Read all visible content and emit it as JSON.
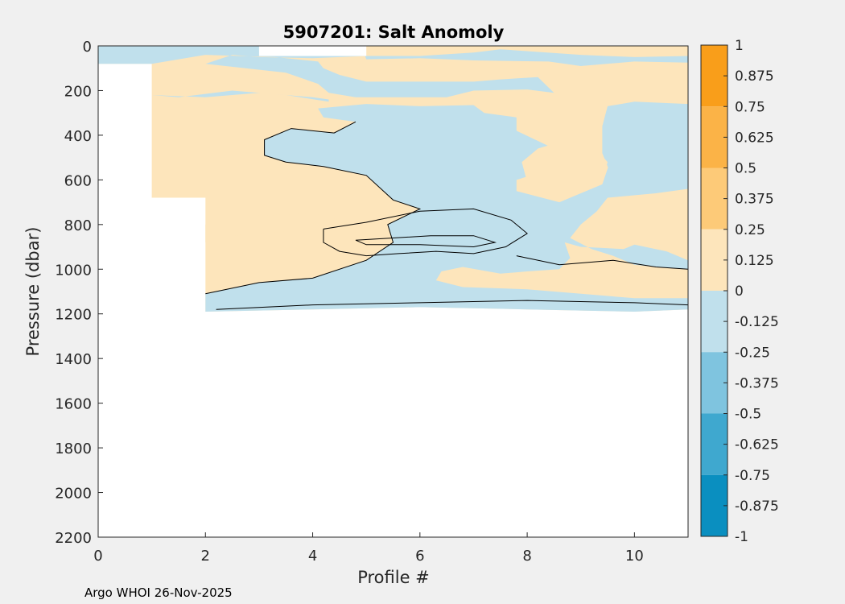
{
  "chart_data": {
    "type": "filled-contour",
    "title": "5907201: Salt Anomoly",
    "xlabel": "Profile #",
    "ylabel": "Pressure (dbar)",
    "xlim": [
      0,
      11
    ],
    "ylim": [
      0,
      2200
    ],
    "y_reversed": true,
    "x_ticks": [
      "0",
      "2",
      "4",
      "6",
      "8",
      "10"
    ],
    "y_ticks": [
      "0",
      "200",
      "400",
      "600",
      "800",
      "1000",
      "1200",
      "1400",
      "1600",
      "1800",
      "2000",
      "2200"
    ],
    "colorbar": {
      "range": [
        -1,
        1
      ],
      "tick_labels": [
        "1",
        "0.875",
        "0.75",
        "0.625",
        "0.5",
        "0.375",
        "0.25",
        "0.125",
        "0",
        "-0.125",
        "-0.25",
        "-0.375",
        "-0.5",
        "-0.625",
        "-0.75",
        "-0.875",
        "-1"
      ],
      "bands": [
        {
          "from": 0.75,
          "to": 1,
          "color": "#f99e1a"
        },
        {
          "from": 0.5,
          "to": 0.75,
          "color": "#fbb347"
        },
        {
          "from": 0.25,
          "to": 0.5,
          "color": "#fdca78"
        },
        {
          "from": 0,
          "to": 0.25,
          "color": "#fde5bb"
        },
        {
          "from": -0.25,
          "to": 0,
          "color": "#c0e0ec"
        },
        {
          "from": -0.5,
          "to": -0.25,
          "color": "#7fc4df"
        },
        {
          "from": -0.75,
          "to": -0.5,
          "color": "#3fa8cf"
        },
        {
          "from": -1,
          "to": -0.75,
          "color": "#0a8fc0"
        }
      ]
    },
    "regions": [
      {
        "name": "anomaly-0-to-0.25-region",
        "band": 3,
        "points": [
          [
            0,
            0
          ],
          [
            11,
            0
          ],
          [
            11,
            1180
          ],
          [
            10,
            1190
          ],
          [
            8,
            1180
          ],
          [
            6,
            1170
          ],
          [
            4,
            1180
          ],
          [
            2,
            1190
          ],
          [
            2,
            680
          ],
          [
            1,
            680
          ],
          [
            1,
            80
          ],
          [
            0,
            80
          ]
        ]
      },
      {
        "name": "anomaly-neg-upper-left-region",
        "band": 4,
        "points": [
          [
            0,
            0
          ],
          [
            4.9,
            0
          ],
          [
            5,
            60
          ],
          [
            6,
            55
          ],
          [
            7,
            65
          ],
          [
            8.4,
            70
          ],
          [
            9,
            90
          ],
          [
            10,
            70
          ],
          [
            11,
            75
          ],
          [
            11,
            45
          ],
          [
            10,
            50
          ],
          [
            9,
            40
          ],
          [
            7.5,
            15
          ],
          [
            7,
            30
          ],
          [
            6,
            45
          ],
          [
            5,
            45
          ],
          [
            4,
            55
          ],
          [
            3,
            50
          ],
          [
            2.5,
            40
          ],
          [
            2,
            80
          ],
          [
            3.5,
            120
          ],
          [
            4.1,
            170
          ],
          [
            4.3,
            210
          ],
          [
            4.8,
            230
          ],
          [
            6.5,
            230
          ],
          [
            7,
            200
          ],
          [
            8,
            195
          ],
          [
            8.5,
            210
          ],
          [
            8.2,
            140
          ],
          [
            7.5,
            150
          ],
          [
            7,
            160
          ],
          [
            5,
            160
          ],
          [
            4.5,
            130
          ],
          [
            4.2,
            100
          ],
          [
            4.1,
            70
          ],
          [
            3.3,
            50
          ],
          [
            2,
            40
          ],
          [
            1,
            80
          ],
          [
            1,
            220
          ],
          [
            2,
            230
          ],
          [
            3,
            210
          ],
          [
            4,
            230
          ],
          [
            4.3,
            240
          ],
          [
            4.3,
            250
          ],
          [
            3.5,
            220
          ],
          [
            2.5,
            200
          ],
          [
            1.5,
            230
          ],
          [
            1,
            220
          ],
          [
            1,
            80
          ],
          [
            0,
            80
          ]
        ]
      },
      {
        "name": "anomaly-neg-main-region",
        "band": 4,
        "points": [
          [
            2.2,
            1100
          ],
          [
            3,
            1060
          ],
          [
            4,
            1040
          ],
          [
            5,
            960
          ],
          [
            5.5,
            880
          ],
          [
            5.4,
            800
          ],
          [
            6,
            730
          ],
          [
            5.5,
            690
          ],
          [
            5,
            580
          ],
          [
            4.2,
            540
          ],
          [
            3.5,
            520
          ],
          [
            3.1,
            490
          ],
          [
            3.1,
            420
          ],
          [
            3.6,
            370
          ],
          [
            4.4,
            390
          ],
          [
            4.8,
            340
          ],
          [
            4.2,
            320
          ],
          [
            4.1,
            280
          ],
          [
            5,
            260
          ],
          [
            6,
            270
          ],
          [
            7,
            265
          ],
          [
            7.2,
            300
          ],
          [
            7.5,
            310
          ],
          [
            7.8,
            320
          ],
          [
            7.8,
            380
          ],
          [
            8.5,
            460
          ],
          [
            8.5,
            510
          ],
          [
            8.2,
            570
          ],
          [
            7.8,
            600
          ],
          [
            7.8,
            650
          ],
          [
            8.6,
            700
          ],
          [
            9,
            660
          ],
          [
            9.4,
            620
          ],
          [
            9.5,
            550
          ],
          [
            9.7,
            440
          ],
          [
            9.8,
            350
          ],
          [
            10.5,
            260
          ],
          [
            11,
            260
          ],
          [
            11,
            640
          ],
          [
            10.4,
            660
          ],
          [
            9.5,
            680
          ],
          [
            9.3,
            740
          ],
          [
            9,
            800
          ],
          [
            8.8,
            860
          ],
          [
            9.2,
            910
          ],
          [
            9.6,
            940
          ],
          [
            10,
            980
          ],
          [
            10.4,
            990
          ],
          [
            11,
            1000
          ],
          [
            11,
            960
          ],
          [
            10.6,
            920
          ],
          [
            10,
            890
          ],
          [
            9.8,
            910
          ],
          [
            9,
            900
          ],
          [
            8.7,
            880
          ],
          [
            8.8,
            950
          ],
          [
            8.6,
            1000
          ],
          [
            8,
            1010
          ],
          [
            7.5,
            1020
          ],
          [
            6.8,
            990
          ],
          [
            6.4,
            1010
          ],
          [
            6.3,
            1050
          ],
          [
            6.8,
            1080
          ],
          [
            8,
            1090
          ],
          [
            10,
            1130
          ],
          [
            11,
            1130
          ],
          [
            11,
            1180
          ],
          [
            10,
            1190
          ],
          [
            8,
            1180
          ],
          [
            6,
            1170
          ],
          [
            4,
            1180
          ],
          [
            2,
            1190
          ],
          [
            2,
            1110
          ]
        ]
      },
      {
        "name": "anomaly-neg-right-region",
        "band": 4,
        "points": [
          [
            9.5,
            270
          ],
          [
            10,
            250
          ],
          [
            11,
            260
          ],
          [
            11,
            630
          ],
          [
            10,
            640
          ],
          [
            9.6,
            600
          ],
          [
            9.4,
            480
          ],
          [
            9.4,
            360
          ]
        ]
      },
      {
        "name": "anomaly-pos-inner-region",
        "band": 3,
        "points": [
          [
            2,
            800
          ],
          [
            3,
            760
          ],
          [
            4,
            750
          ],
          [
            4.5,
            780
          ],
          [
            4.3,
            820
          ],
          [
            3.5,
            830
          ],
          [
            2.5,
            850
          ],
          [
            2,
            880
          ]
        ]
      },
      {
        "name": "anomaly-pos-upper-right-region",
        "band": 3,
        "points": [
          [
            8.6,
            430
          ],
          [
            9.2,
            440
          ],
          [
            9.5,
            520
          ],
          [
            9.4,
            600
          ],
          [
            8.8,
            630
          ],
          [
            8,
            610
          ],
          [
            7.9,
            520
          ],
          [
            8.2,
            460
          ]
        ]
      }
    ],
    "mask_gaps": [
      {
        "name": "no-data-gap-region",
        "points": [
          [
            3,
            0
          ],
          [
            5,
            0
          ],
          [
            5,
            45
          ],
          [
            3,
            45
          ]
        ]
      }
    ],
    "contours": [
      {
        "name": "contour-line",
        "points": [
          [
            2,
            1110
          ],
          [
            3,
            1060
          ],
          [
            4,
            1040
          ],
          [
            5,
            960
          ],
          [
            5.5,
            880
          ],
          [
            5.4,
            800
          ],
          [
            6,
            730
          ],
          [
            5.5,
            690
          ],
          [
            5,
            580
          ],
          [
            4.2,
            540
          ],
          [
            3.5,
            520
          ],
          [
            3.1,
            490
          ],
          [
            3.1,
            420
          ],
          [
            3.6,
            370
          ],
          [
            4.4,
            390
          ],
          [
            4.8,
            340
          ]
        ]
      },
      {
        "name": "contour-line",
        "points": [
          [
            4.2,
            820
          ],
          [
            5,
            790
          ],
          [
            6,
            740
          ],
          [
            7,
            730
          ],
          [
            7.7,
            780
          ],
          [
            8,
            840
          ],
          [
            7.6,
            900
          ],
          [
            7,
            930
          ],
          [
            6.3,
            920
          ],
          [
            5.6,
            930
          ],
          [
            5,
            940
          ],
          [
            4.5,
            920
          ],
          [
            4.2,
            880
          ],
          [
            4.2,
            820
          ]
        ]
      },
      {
        "name": "contour-line",
        "points": [
          [
            4.8,
            870
          ],
          [
            5.5,
            860
          ],
          [
            6.2,
            850
          ],
          [
            7,
            850
          ],
          [
            7.4,
            880
          ],
          [
            7,
            900
          ],
          [
            6,
            890
          ],
          [
            5,
            890
          ],
          [
            4.8,
            870
          ]
        ]
      },
      {
        "name": "contour-line",
        "points": [
          [
            2.2,
            1180
          ],
          [
            4,
            1160
          ],
          [
            6,
            1150
          ],
          [
            8,
            1140
          ],
          [
            10,
            1150
          ],
          [
            11,
            1160
          ]
        ]
      },
      {
        "name": "contour-line",
        "points": [
          [
            7.8,
            940
          ],
          [
            8.6,
            980
          ],
          [
            9.6,
            960
          ],
          [
            10.4,
            990
          ],
          [
            11,
            1000
          ]
        ]
      }
    ]
  },
  "footer": "Argo WHOI 26-Nov-2025"
}
